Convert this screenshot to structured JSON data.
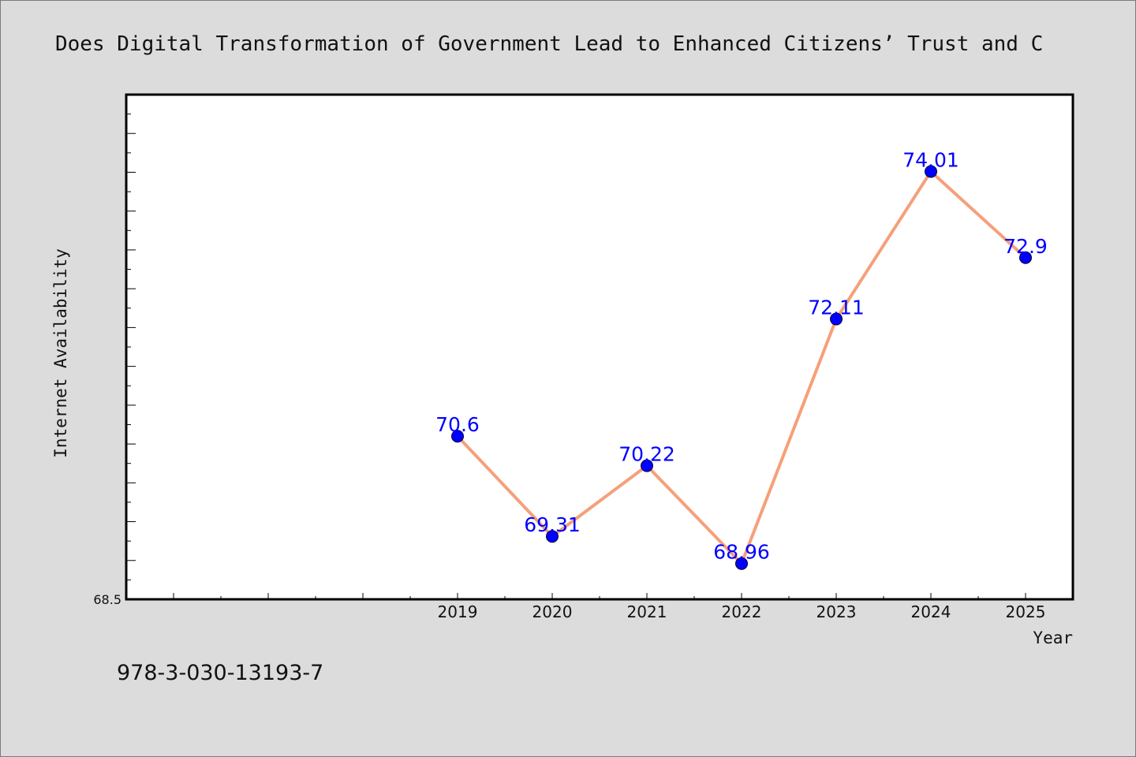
{
  "chart_data": {
    "type": "line",
    "title": "Does Digital Transformation of Government Lead to Enhanced Citizens’ Trust and C",
    "xlabel": "Year",
    "ylabel": "Internet Availability",
    "ylim": [
      68.5,
      75.0
    ],
    "y_tick_labels": [
      "68.5"
    ],
    "xlim": [
      2015.5,
      2025.5
    ],
    "x_tick_labels": [
      "2019",
      "2020",
      "2021",
      "2022",
      "2023",
      "2024",
      "2025"
    ],
    "grid": false,
    "x": [
      2019,
      2020,
      2021,
      2022,
      2023,
      2024,
      2025
    ],
    "series": [
      {
        "values": [
          70.6,
          69.31,
          70.22,
          68.96,
          72.11,
          74.01,
          72.9
        ],
        "data_labels": [
          "70.6",
          "69.31",
          "70.22",
          "68.96",
          "72.11",
          "74.01",
          "72.9"
        ]
      }
    ],
    "colors": {
      "line": "#f5a07a",
      "marker": "#0000ff",
      "label": "#0000ff",
      "background": "#dcdcdc",
      "plot_area": "#ffffff"
    }
  },
  "footer": {
    "text": "978-3-030-13193-7"
  }
}
